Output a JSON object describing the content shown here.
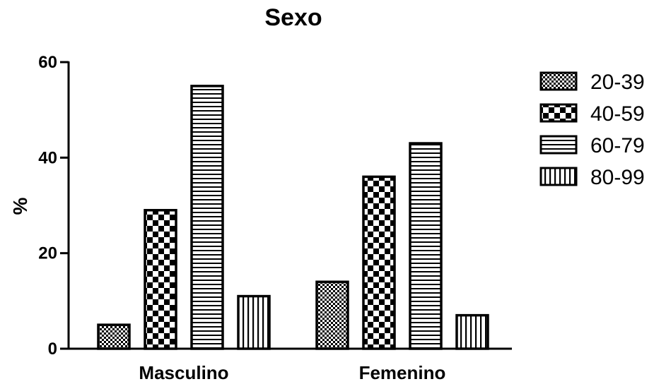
{
  "chart_data": {
    "type": "bar",
    "title": "Sexo",
    "xlabel": "",
    "ylabel": "%",
    "ylim": [
      0,
      60
    ],
    "yticks": [
      0,
      20,
      40,
      60
    ],
    "categories": [
      "Masculino",
      "Femenino"
    ],
    "series": [
      {
        "name": "20-39",
        "values": [
          5,
          14
        ],
        "pattern": "fine-checker"
      },
      {
        "name": "40-59",
        "values": [
          29,
          36
        ],
        "pattern": "checker"
      },
      {
        "name": "60-79",
        "values": [
          55,
          43
        ],
        "pattern": "horizontal-lines"
      },
      {
        "name": "80-99",
        "values": [
          11,
          7
        ],
        "pattern": "vertical-lines"
      }
    ],
    "legend": "right",
    "grid": false,
    "colors": {
      "ink": "#000000",
      "fill": "#ffffff"
    }
  }
}
